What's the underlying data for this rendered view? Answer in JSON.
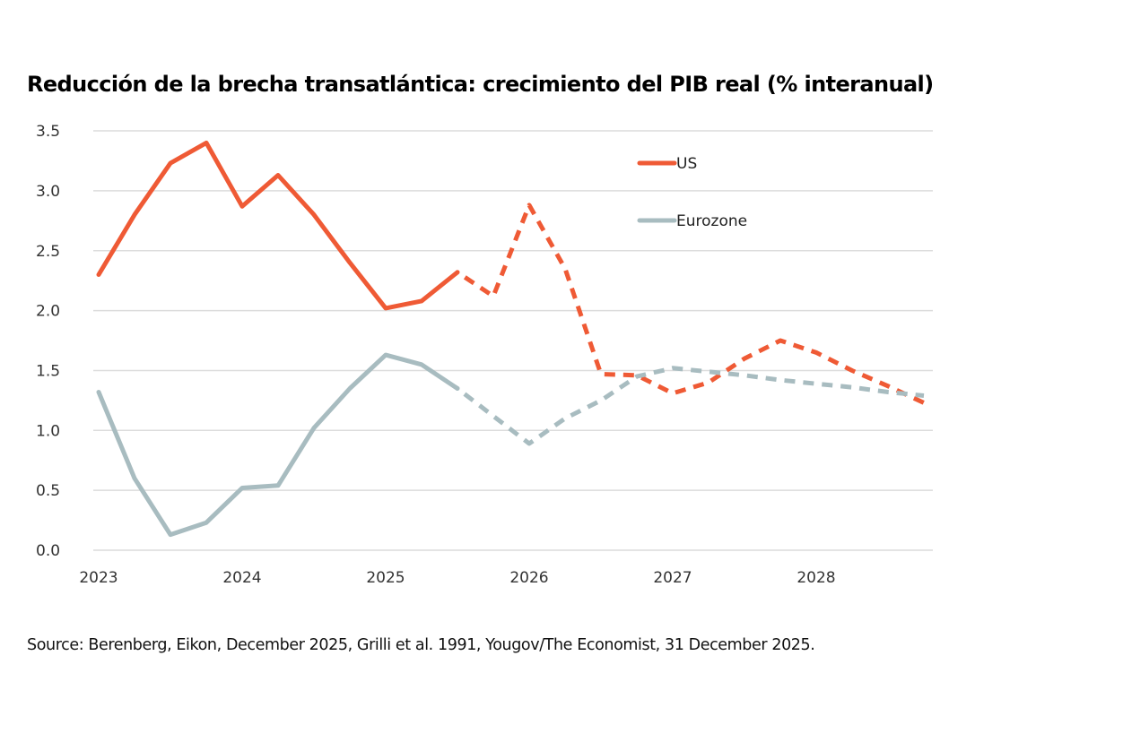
{
  "title": "Reducción de la brecha transatlántica: crecimiento del PIB real (% interanual)",
  "source": "Source: Berenberg, Eikon, December 2025, Grilli et al. 1991, Yougov/The Economist, 31 December 2025.",
  "chart_data": {
    "type": "line",
    "title": "Reducción de la brecha transatlántica: crecimiento del PIB real (% interanual)",
    "xlabel": "",
    "ylabel": "",
    "xlim": [
      2023.0,
      2028.75
    ],
    "ylim": [
      0,
      3.5
    ],
    "yticks": [
      0.0,
      0.5,
      1.0,
      1.5,
      2.0,
      2.5,
      3.0,
      3.5
    ],
    "ytick_labels": [
      "0.0",
      "0.5",
      "1.0",
      "1.5",
      "2.0",
      "2.5",
      "3.0",
      "3.5"
    ],
    "xticks": [
      2023,
      2024,
      2025,
      2026,
      2027,
      2028
    ],
    "xtick_labels": [
      "2023",
      "2024",
      "2025",
      "2026",
      "2027",
      "2028"
    ],
    "grid": true,
    "legend_position": "top-right",
    "forecast_start": 2025.5,
    "x": [
      2023.0,
      2023.25,
      2023.5,
      2023.75,
      2024.0,
      2024.25,
      2024.5,
      2024.75,
      2025.0,
      2025.25,
      2025.5,
      2025.75,
      2026.0,
      2026.25,
      2026.5,
      2026.75,
      2027.0,
      2027.25,
      2027.5,
      2027.75,
      2028.0,
      2028.25,
      2028.5,
      2028.75
    ],
    "series": [
      {
        "name": "US",
        "color": "#ef5a35",
        "values": [
          2.3,
          2.8,
          3.23,
          3.4,
          2.87,
          3.13,
          2.8,
          2.4,
          2.02,
          2.08,
          2.32,
          2.12,
          2.88,
          2.35,
          1.47,
          1.46,
          1.31,
          1.4,
          1.6,
          1.75,
          1.65,
          1.5,
          1.37,
          1.23
        ]
      },
      {
        "name": "Eurozone",
        "color": "#a8bcc0",
        "values": [
          1.32,
          0.6,
          0.13,
          0.23,
          0.52,
          0.54,
          1.02,
          1.35,
          1.63,
          1.55,
          1.35,
          1.12,
          0.89,
          1.1,
          1.25,
          1.45,
          1.52,
          1.49,
          1.46,
          1.42,
          1.39,
          1.36,
          1.32,
          1.29
        ]
      }
    ]
  }
}
